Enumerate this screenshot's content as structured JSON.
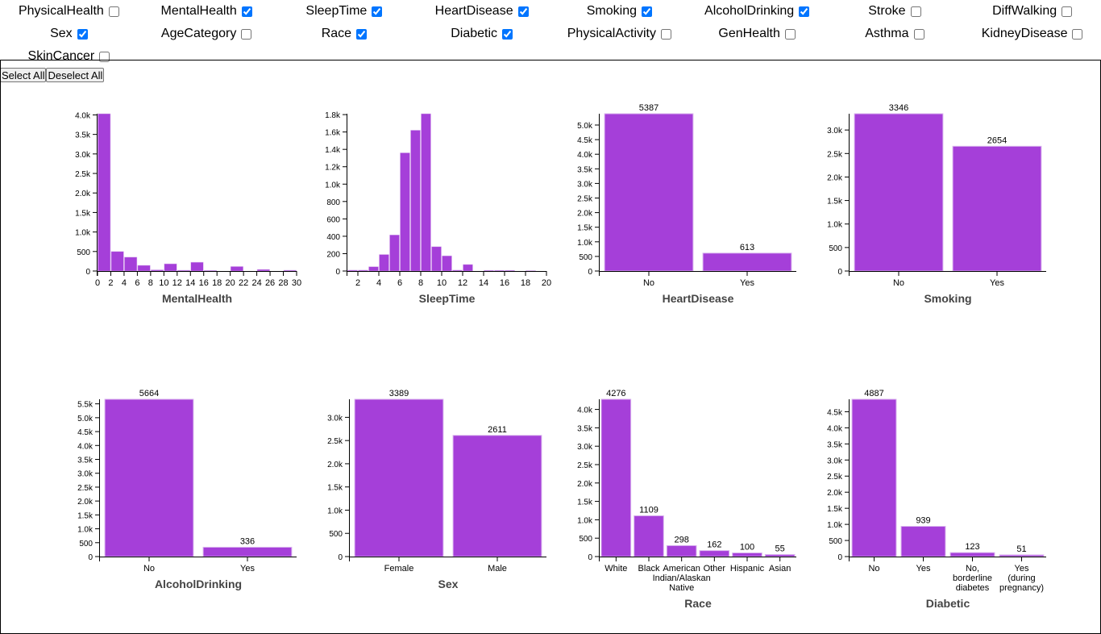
{
  "filters": [
    {
      "label": "PhysicalHealth",
      "checked": false
    },
    {
      "label": "MentalHealth",
      "checked": true
    },
    {
      "label": "SleepTime",
      "checked": true
    },
    {
      "label": "HeartDisease",
      "checked": true
    },
    {
      "label": "Smoking",
      "checked": true
    },
    {
      "label": "AlcoholDrinking",
      "checked": true
    },
    {
      "label": "Stroke",
      "checked": false
    },
    {
      "label": "DiffWalking",
      "checked": false
    },
    {
      "label": "Sex",
      "checked": true
    },
    {
      "label": "AgeCategory",
      "checked": false
    },
    {
      "label": "Race",
      "checked": true
    },
    {
      "label": "Diabetic",
      "checked": true
    },
    {
      "label": "PhysicalActivity",
      "checked": false
    },
    {
      "label": "GenHealth",
      "checked": false
    },
    {
      "label": "Asthma",
      "checked": false
    },
    {
      "label": "KidneyDisease",
      "checked": false
    },
    {
      "label": "SkinCancer",
      "checked": false
    }
  ],
  "buttons": {
    "select_all": "Select All",
    "deselect_all": "Deselect All"
  },
  "bar_color": "#a53fd9",
  "chart_data": [
    {
      "type": "histogram",
      "title": "MentalHealth",
      "bin_width": 2,
      "x_range": [
        0,
        30
      ],
      "xticks": [
        0,
        2,
        4,
        6,
        8,
        10,
        12,
        14,
        16,
        18,
        20,
        22,
        24,
        26,
        28,
        30
      ],
      "values": [
        4030,
        500,
        355,
        145,
        30,
        185,
        20,
        225,
        15,
        0,
        115,
        0,
        40,
        0,
        20
      ],
      "ylim": [
        0,
        4030
      ],
      "yticks": [
        0,
        500,
        1000,
        1500,
        2000,
        2500,
        3000,
        3500,
        4000
      ]
    },
    {
      "type": "histogram",
      "title": "SleepTime",
      "bin_width": 1,
      "x_range": [
        1,
        20
      ],
      "xticks": [
        2,
        4,
        6,
        8,
        10,
        12,
        14,
        16,
        18,
        20
      ],
      "values": [
        10,
        10,
        50,
        190,
        415,
        1360,
        1620,
        1810,
        280,
        175,
        10,
        75,
        0,
        8,
        8,
        8,
        0,
        5,
        0
      ],
      "ylim": [
        0,
        1810
      ],
      "yticks": [
        0,
        200,
        400,
        600,
        800,
        1000,
        1200,
        1400,
        1600,
        1800
      ]
    },
    {
      "type": "bar",
      "title": "HeartDisease",
      "categories": [
        "No",
        "Yes"
      ],
      "values": [
        5387,
        613
      ],
      "yticks": [
        0,
        500,
        1000,
        1500,
        2000,
        2500,
        3000,
        3500,
        4000,
        4500,
        5000
      ]
    },
    {
      "type": "bar",
      "title": "Smoking",
      "categories": [
        "No",
        "Yes"
      ],
      "values": [
        3346,
        2654
      ],
      "yticks": [
        0,
        500,
        1000,
        1500,
        2000,
        2500,
        3000
      ]
    },
    {
      "type": "bar",
      "title": "AlcoholDrinking",
      "categories": [
        "No",
        "Yes"
      ],
      "values": [
        5664,
        336
      ],
      "yticks": [
        0,
        500,
        1000,
        1500,
        2000,
        2500,
        3000,
        3500,
        4000,
        4500,
        5000,
        5500
      ]
    },
    {
      "type": "bar",
      "title": "Sex",
      "categories": [
        "Female",
        "Male"
      ],
      "values": [
        3389,
        2611
      ],
      "yticks": [
        0,
        500,
        1000,
        1500,
        2000,
        2500,
        3000
      ]
    },
    {
      "type": "bar",
      "title": "Race",
      "categories": [
        "White",
        "Black",
        "American Indian/Alaskan Native",
        "Other",
        "Hispanic",
        "Asian"
      ],
      "values": [
        4276,
        1109,
        298,
        162,
        100,
        55
      ],
      "yticks": [
        0,
        500,
        1000,
        1500,
        2000,
        2500,
        3000,
        3500,
        4000
      ]
    },
    {
      "type": "bar",
      "title": "Diabetic",
      "categories": [
        "No",
        "Yes",
        "No, borderline diabetes",
        "Yes (during pregnancy)"
      ],
      "values": [
        4887,
        939,
        123,
        51
      ],
      "yticks": [
        0,
        500,
        1000,
        1500,
        2000,
        2500,
        3000,
        3500,
        4000,
        4500
      ]
    }
  ]
}
